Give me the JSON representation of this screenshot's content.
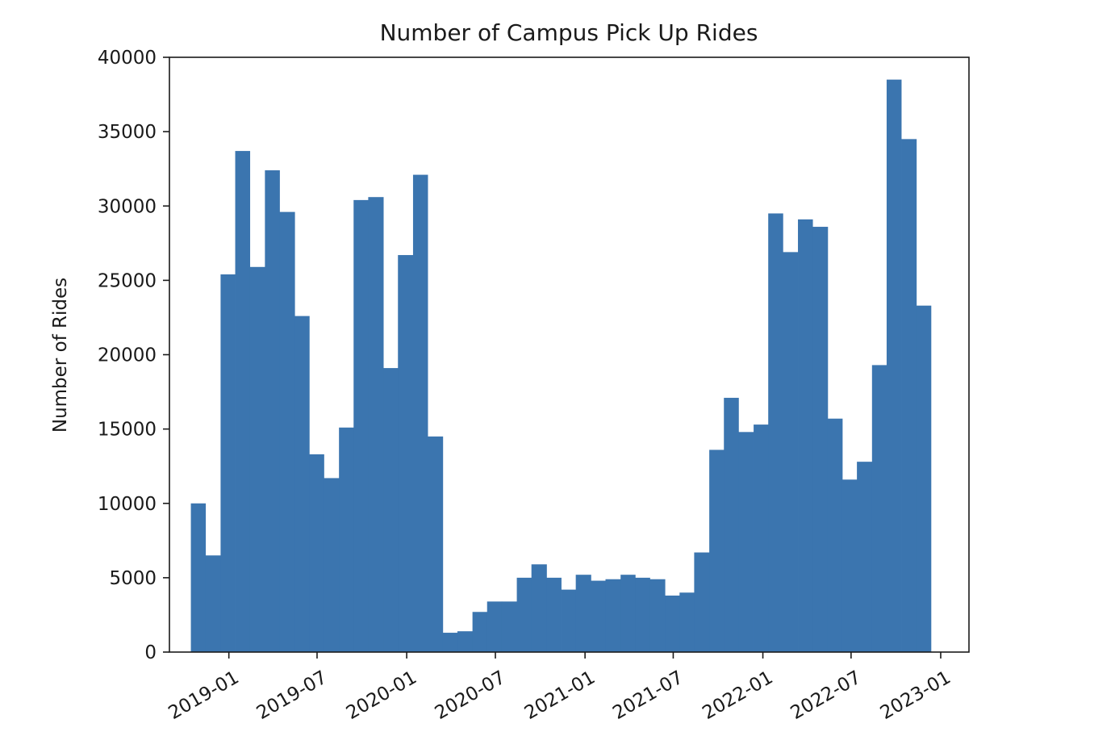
{
  "chart_data": {
    "type": "bar",
    "title": "Number of Campus Pick Up Rides",
    "xlabel": "",
    "ylabel": "Number of Rides",
    "ylim": [
      0,
      40000
    ],
    "yticks": [
      0,
      5000,
      10000,
      15000,
      20000,
      25000,
      30000,
      35000,
      40000
    ],
    "ytick_labels": [
      "0",
      "5000",
      "10000",
      "15000",
      "20000",
      "25000",
      "30000",
      "35000",
      "40000"
    ],
    "xlim": [
      "2018-09-01",
      "2023-02-28"
    ],
    "xticks": [
      "2019-01-01",
      "2019-07-01",
      "2020-01-01",
      "2020-07-01",
      "2021-01-01",
      "2021-07-01",
      "2022-01-01",
      "2022-07-01",
      "2023-01-01"
    ],
    "xtick_labels": [
      "2019-01",
      "2019-07",
      "2020-01",
      "2020-07",
      "2021-01",
      "2021-07",
      "2022-01",
      "2022-07",
      "2023-01"
    ],
    "bin_edges": [
      "2018-10-15",
      "2018-11-14",
      "2018-12-15",
      "2019-01-14",
      "2019-02-13",
      "2019-03-16",
      "2019-04-15",
      "2019-05-16",
      "2019-06-15",
      "2019-07-15",
      "2019-08-15",
      "2019-09-14",
      "2019-10-14",
      "2019-11-14",
      "2019-12-14",
      "2020-01-14",
      "2020-02-13",
      "2020-03-15",
      "2020-04-14",
      "2020-05-15",
      "2020-06-14",
      "2020-07-14",
      "2020-08-14",
      "2020-09-13",
      "2020-10-14",
      "2020-11-13",
      "2020-12-13",
      "2021-01-13",
      "2021-02-12",
      "2021-03-15",
      "2021-04-14",
      "2021-05-14",
      "2021-06-14",
      "2021-07-14",
      "2021-08-13",
      "2021-09-13",
      "2021-10-13",
      "2021-11-12",
      "2021-12-13",
      "2022-01-12",
      "2022-02-11",
      "2022-03-14",
      "2022-04-13",
      "2022-05-14",
      "2022-06-13",
      "2022-07-13",
      "2022-08-13",
      "2022-09-12",
      "2022-10-12",
      "2022-11-12",
      "2022-12-12"
    ],
    "values": [
      10000,
      6500,
      25400,
      33700,
      25900,
      32400,
      29600,
      22600,
      13300,
      11700,
      15100,
      30400,
      30600,
      19100,
      26700,
      32100,
      14500,
      1300,
      1400,
      2700,
      3400,
      3400,
      5000,
      5900,
      5000,
      4200,
      5200,
      4800,
      4900,
      5200,
      5000,
      4900,
      3800,
      4000,
      6700,
      13600,
      17100,
      14800,
      15300,
      29500,
      26900,
      29100,
      28600,
      15700,
      11600,
      12800,
      19300,
      38500,
      34500,
      23300
    ],
    "bar_color": "#3b75af",
    "grid": false
  }
}
